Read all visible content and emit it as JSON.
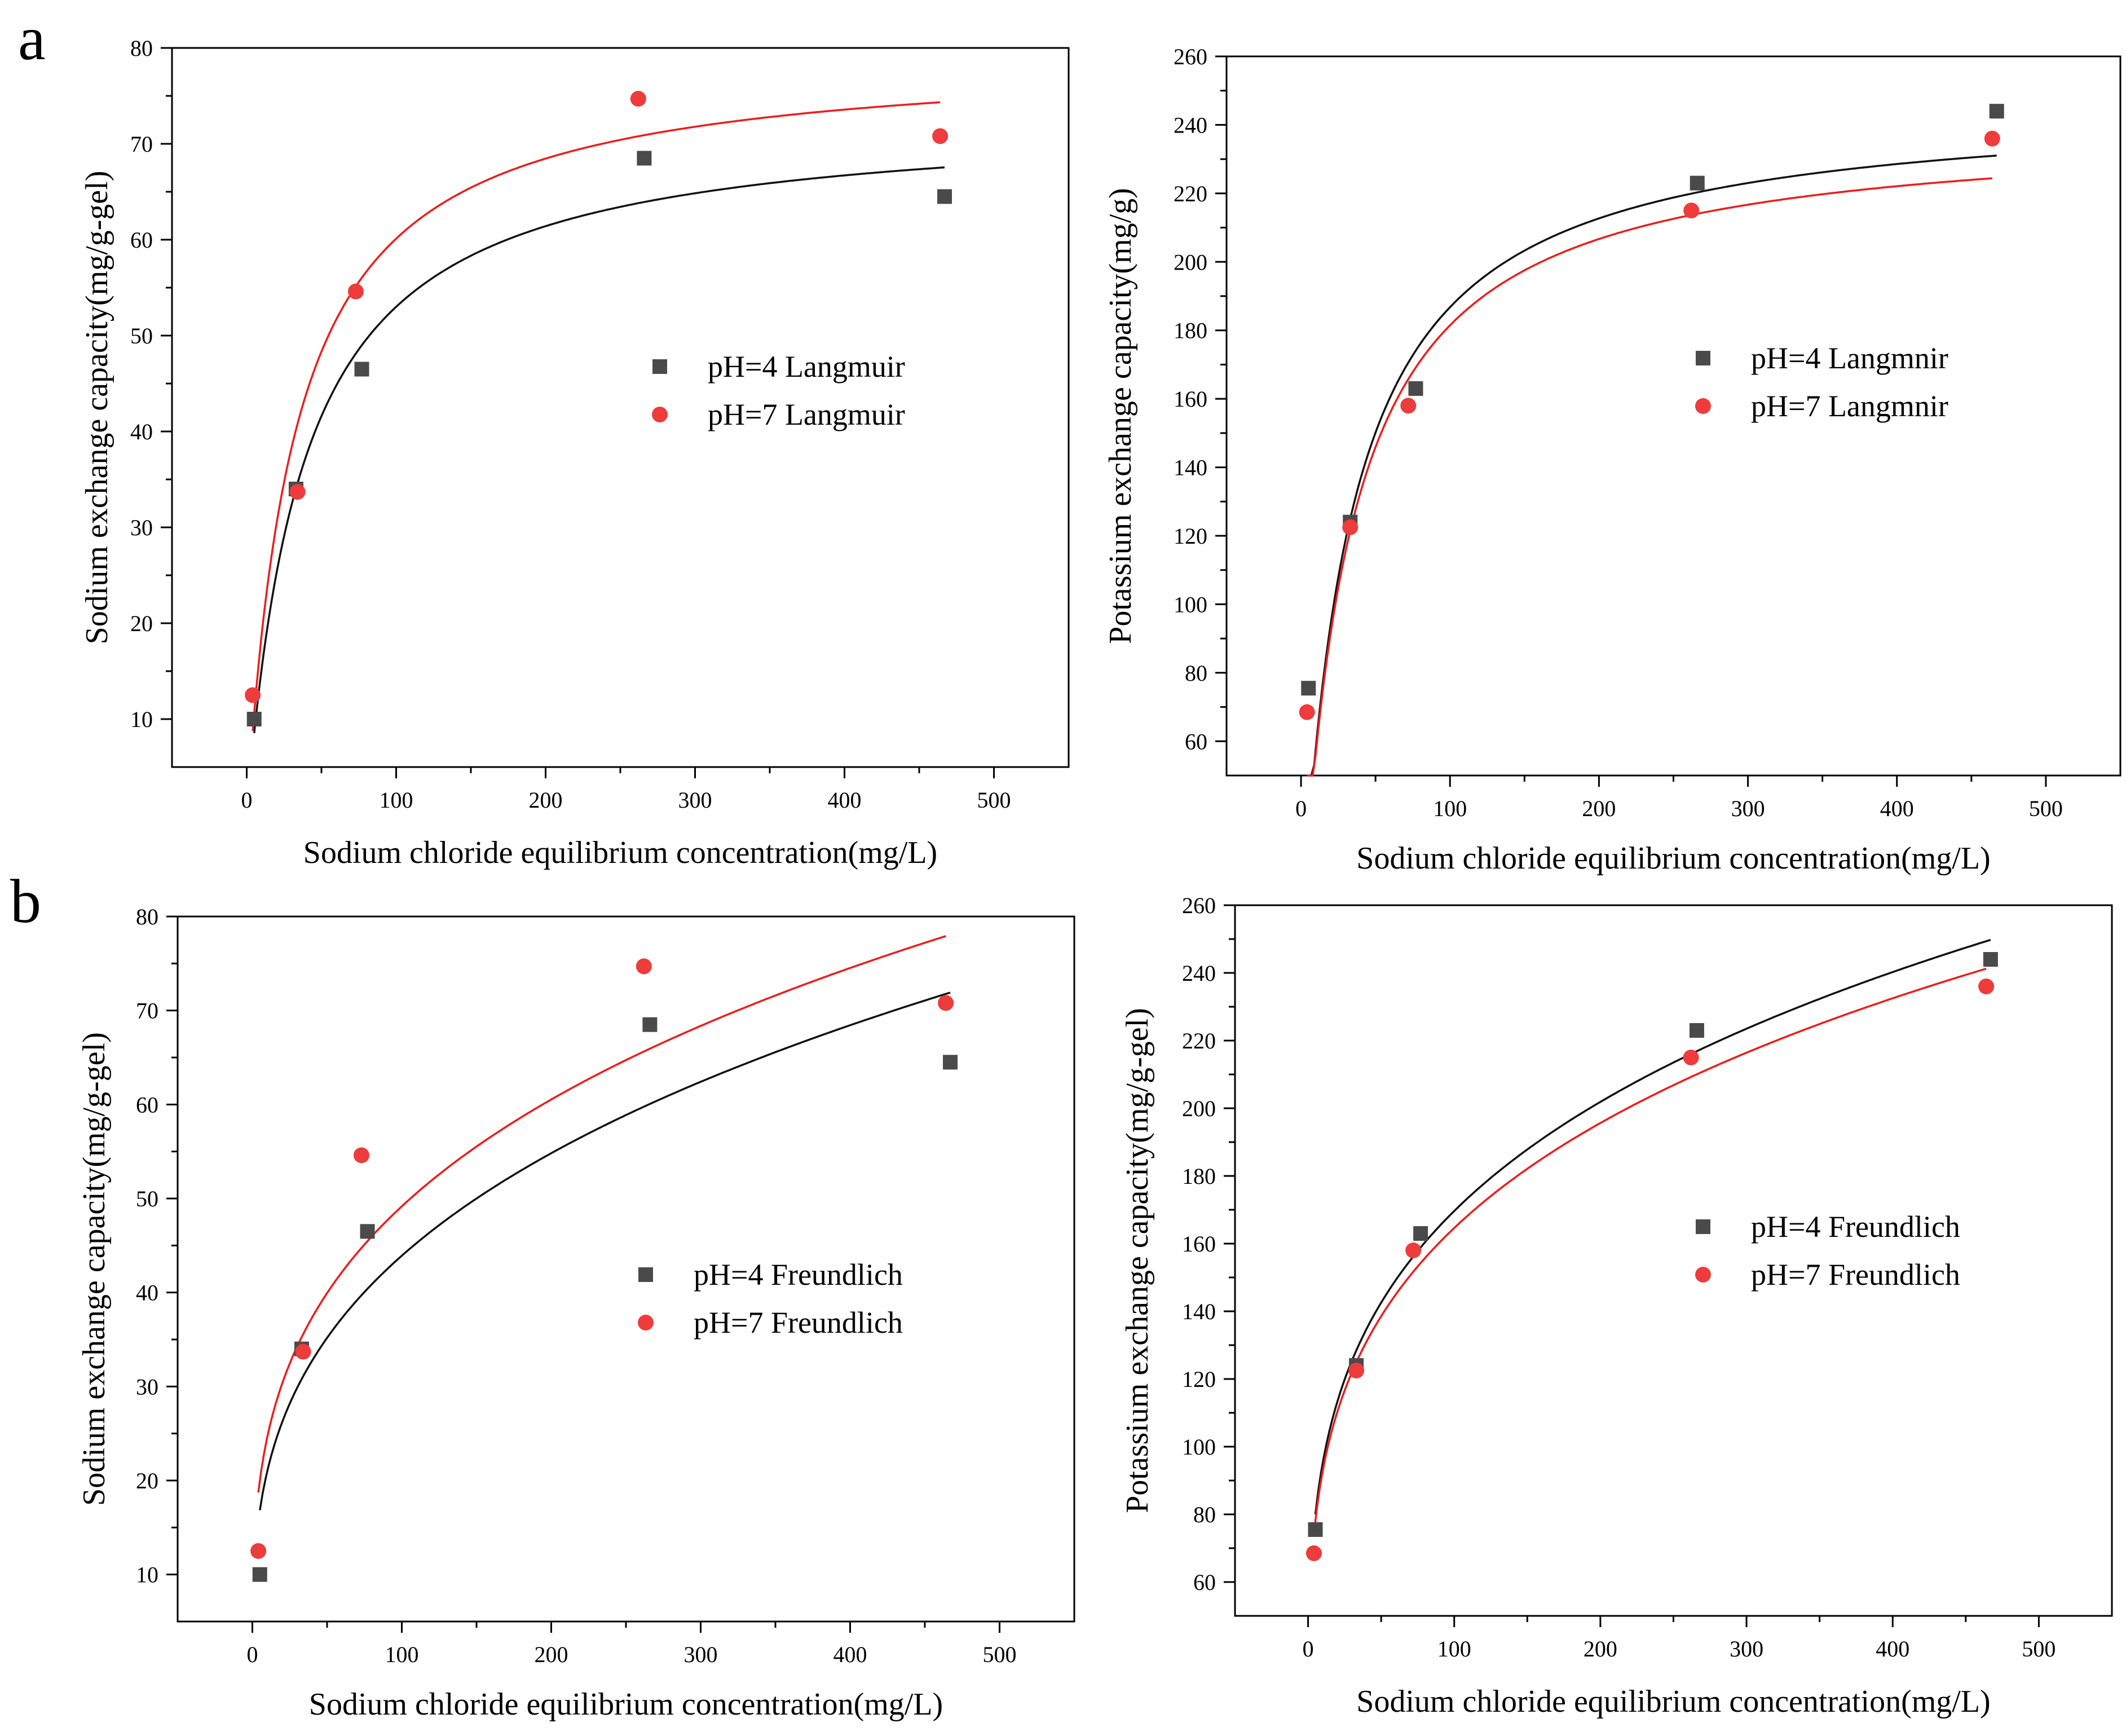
{
  "figure": {
    "panel_labels": [
      "a",
      "b"
    ],
    "colors": {
      "black_series": "#4a4a4a",
      "red_series": "#ee3b3b",
      "black_curve": "#111111",
      "red_curve": "#ee1c1c"
    }
  },
  "chart_data": [
    {
      "id": "a-left",
      "type": "scatter",
      "panel": "a",
      "fit": "langmuir",
      "xlabel": "Sodium chloride equilibrium concentration(mg/L)",
      "ylabel": "Sodium exchange capacity(mg/g-gel)",
      "xlim": [
        -50,
        550
      ],
      "ylim": [
        5,
        80
      ],
      "xticks": [
        0,
        100,
        200,
        300,
        400,
        500
      ],
      "yticks": [
        10,
        20,
        30,
        40,
        50,
        60,
        70,
        80
      ],
      "legend": [
        "pH=4 Langmuir",
        "pH=7 Langmuir"
      ],
      "series": [
        {
          "name": "pH=4 Langmuir",
          "marker": "square",
          "x": [
            5,
            33,
            77,
            266,
            467
          ],
          "y": [
            10,
            34,
            46.5,
            68.5,
            64.5
          ],
          "curve_params": {
            "qmax": 73.0,
            "K": 0.0265
          }
        },
        {
          "name": "pH=7 Langmuir",
          "marker": "circle",
          "x": [
            4,
            34,
            73,
            262,
            464
          ],
          "y": [
            12.5,
            33.7,
            54.6,
            74.7,
            70.8
          ],
          "curve_params": {
            "qmax": 79.5,
            "K": 0.031
          }
        }
      ]
    },
    {
      "id": "a-right",
      "type": "scatter",
      "panel": "a",
      "fit": "langmuir",
      "xlabel": "Sodium chloride equilibrium concentration(mg/L)",
      "ylabel": "Potassium exchange capacity(mg/g)",
      "xlim": [
        -50,
        550
      ],
      "ylim": [
        50,
        260
      ],
      "xticks": [
        0,
        100,
        200,
        300,
        400,
        500
      ],
      "yticks": [
        60,
        80,
        100,
        120,
        140,
        160,
        180,
        200,
        220,
        240,
        260
      ],
      "legend": [
        "pH=4 Langmnir",
        "pH=7 Langmnir"
      ],
      "series": [
        {
          "name": "pH=4 Langmnir",
          "marker": "square",
          "x": [
            5,
            33,
            77,
            266,
            467
          ],
          "y": [
            75.5,
            124,
            163,
            223,
            244
          ],
          "curve_params": {
            "qmax": 247,
            "K": 0.031
          }
        },
        {
          "name": "pH=7 Langmnir",
          "marker": "circle",
          "x": [
            4,
            33,
            72,
            262,
            464
          ],
          "y": [
            68.5,
            122.5,
            158,
            215,
            236
          ],
          "curve_params": {
            "qmax": 240,
            "K": 0.031
          }
        }
      ]
    },
    {
      "id": "b-left",
      "type": "scatter",
      "panel": "b",
      "fit": "freundlich",
      "xlabel": "Sodium chloride equilibrium concentration(mg/L)",
      "ylabel": "Sodium exchange capacity(mg/g-gel)",
      "xlim": [
        -50,
        550
      ],
      "ylim": [
        5,
        80
      ],
      "xticks": [
        0,
        100,
        200,
        300,
        400,
        500
      ],
      "yticks": [
        10,
        20,
        30,
        40,
        50,
        60,
        70,
        80
      ],
      "legend": [
        "pH=4 Freundlich",
        "pH=7 Freundlich"
      ],
      "series": [
        {
          "name": "pH=4 Freundlich",
          "marker": "square",
          "x": [
            5,
            33,
            77,
            266,
            467
          ],
          "y": [
            10,
            34,
            46.5,
            68.5,
            64.5
          ],
          "curve_params": {
            "Kf": 10.06,
            "n": 0.32
          }
        },
        {
          "name": "pH=7 Freundlich",
          "marker": "circle",
          "x": [
            4,
            34,
            73,
            262,
            464
          ],
          "y": [
            12.5,
            33.7,
            54.6,
            74.7,
            70.8
          ],
          "curve_params": {
            "Kf": 12.35,
            "n": 0.3
          }
        }
      ]
    },
    {
      "id": "b-right",
      "type": "scatter",
      "panel": "b",
      "fit": "freundlich",
      "xlabel": "Sodium chloride equilibrium concentration(mg/L)",
      "ylabel": "Potassium exchange capacity(mg/g-gel)",
      "xlim": [
        -50,
        550
      ],
      "ylim": [
        50,
        260
      ],
      "xticks": [
        0,
        100,
        200,
        300,
        400,
        500
      ],
      "yticks": [
        60,
        80,
        100,
        120,
        140,
        160,
        180,
        200,
        220,
        240,
        260
      ],
      "legend": [
        "pH=4 Freundlich",
        "pH=7 Freundlich"
      ],
      "series": [
        {
          "name": "pH=4 Freundlich",
          "marker": "square",
          "x": [
            5,
            33,
            77,
            266,
            467
          ],
          "y": [
            75.5,
            124,
            163,
            223,
            244
          ],
          "curve_params": {
            "Kf": 53.4,
            "n": 0.251
          }
        },
        {
          "name": "pH=7 Freundlich",
          "marker": "circle",
          "x": [
            4,
            33,
            72,
            262,
            464
          ],
          "y": [
            68.5,
            122.5,
            158,
            215,
            236
          ],
          "curve_params": {
            "Kf": 52.3,
            "n": 0.249
          }
        }
      ]
    }
  ]
}
